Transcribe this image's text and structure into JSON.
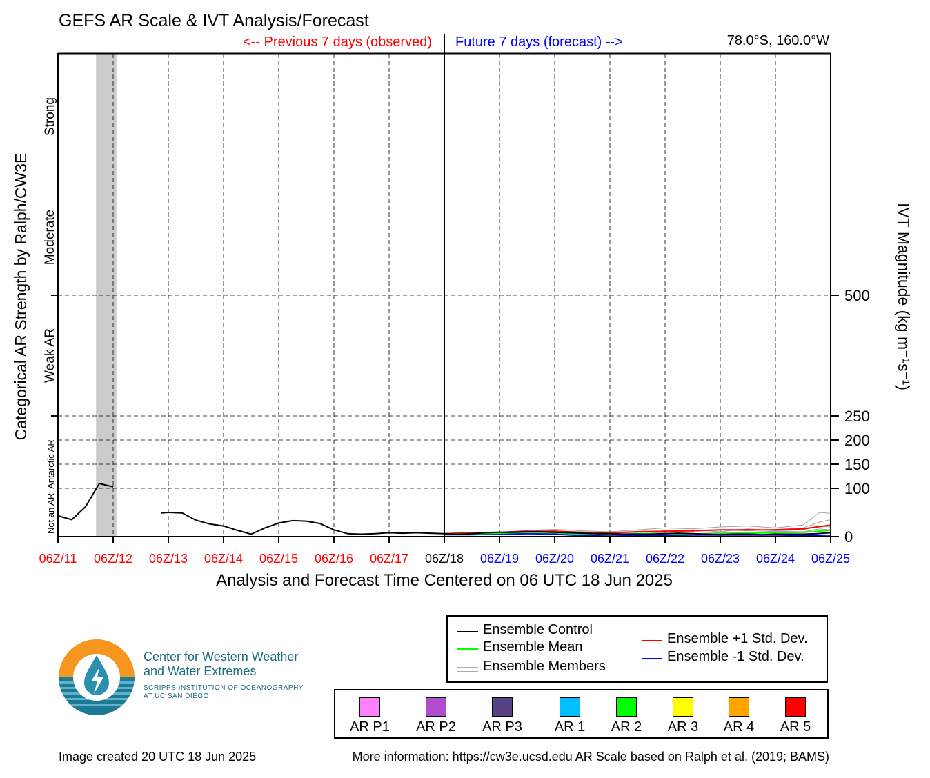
{
  "header": {
    "title": "GEFS AR Scale & IVT Analysis/Forecast",
    "previous_label": "<-- Previous 7 days (observed)",
    "future_label": "Future 7 days (forecast) -->",
    "location": "78.0°S, 160.0°W"
  },
  "colors": {
    "observed": "#ff0000",
    "forecast": "#0000ff",
    "control": "#000000",
    "mean": "#00ff00",
    "plus_std": "#ff0000",
    "minus_std": "#0000ff",
    "members": "#a0a0a0",
    "ar_shade": "#cccccc"
  },
  "chart_data": {
    "type": "line",
    "xlabel": "Analysis and Forecast Time Centered on 06 UTC 18 Jun 2025",
    "ylabel_left": "Categorical AR Strength by Ralph/CW3E",
    "ylabel_right": "IVT Magnitude (kg m⁻¹s⁻¹)",
    "x_ticks": [
      "06Z/11",
      "06Z/12",
      "06Z/13",
      "06Z/14",
      "06Z/15",
      "06Z/16",
      "06Z/17",
      "06Z/18",
      "06Z/19",
      "06Z/20",
      "06Z/21",
      "06Z/22",
      "06Z/23",
      "06Z/24",
      "06Z/25"
    ],
    "center_tick": "06Z/18",
    "x_range_days": [
      0,
      14
    ],
    "y_ticks": [
      0,
      100,
      150,
      200,
      250,
      500
    ],
    "y_range": [
      0,
      1000
    ],
    "left_categories": [
      "Not an AR",
      "Antarctic AR",
      "Weak AR",
      "Moderate",
      "Strong"
    ],
    "grid": true,
    "ar_shaded_period": [
      0.69,
      1.06
    ],
    "series": [
      {
        "name": "Ensemble Control",
        "key": "control",
        "segments": [
          {
            "x": [
              0.0,
              0.25,
              0.5,
              0.75,
              1.0
            ],
            "y": [
              43,
              35,
              62,
              110,
              103
            ]
          },
          {
            "x": [
              1.87,
              2.0,
              2.25,
              2.5,
              2.75,
              3.0,
              3.25,
              3.5,
              3.75,
              4.0,
              4.25,
              4.5,
              4.75,
              5.0,
              5.25,
              5.5,
              5.75,
              6.0,
              6.25,
              6.5,
              6.75,
              7.0,
              7.25,
              7.5,
              7.75,
              8.0,
              8.25,
              8.5,
              8.75,
              9.0,
              9.25,
              9.5,
              9.75,
              10.0,
              10.25,
              10.5,
              10.75,
              11.0,
              11.25,
              11.5,
              11.75,
              12.0,
              12.25,
              12.5,
              12.75,
              13.0,
              13.25,
              13.5,
              13.75,
              14.0
            ],
            "y": [
              49,
              50,
              49,
              34,
              26,
              22,
              13,
              5,
              18,
              28,
              33,
              32,
              27,
              14,
              6,
              5,
              6,
              8,
              7,
              8,
              7,
              6,
              5,
              6,
              8,
              9,
              9,
              10,
              10,
              9,
              8,
              7,
              6,
              6,
              5,
              5,
              5,
              6,
              7,
              6,
              5,
              4,
              5,
              5,
              4,
              5,
              5,
              5,
              6,
              8
            ]
          }
        ]
      },
      {
        "name": "Ensemble Mean",
        "key": "mean",
        "segments": [
          {
            "x": [
              7.0,
              7.5,
              8.0,
              8.5,
              9.0,
              9.5,
              10.0,
              10.5,
              11.0,
              11.5,
              12.0,
              12.5,
              13.0,
              13.5,
              14.0
            ],
            "y": [
              5,
              6,
              7,
              9,
              8,
              5,
              4,
              6,
              6,
              5,
              6,
              7,
              8,
              9,
              13
            ]
          }
        ]
      },
      {
        "name": "Ensemble +1 Std. Dev.",
        "key": "plus_std",
        "segments": [
          {
            "x": [
              7.0,
              7.5,
              8.0,
              8.5,
              9.0,
              9.5,
              10.0,
              10.5,
              11.0,
              11.5,
              12.0,
              12.5,
              13.0,
              13.5,
              14.0
            ],
            "y": [
              6,
              8,
              9,
              11,
              11,
              9,
              8,
              10,
              11,
              12,
              14,
              14,
              14,
              16,
              24
            ]
          }
        ]
      },
      {
        "name": "Ensemble -1 Std. Dev.",
        "key": "minus_std",
        "segments": [
          {
            "x": [
              7.0,
              7.5,
              8.0,
              8.5,
              9.0,
              9.5,
              10.0,
              10.5,
              11.0,
              11.5,
              12.0,
              12.5,
              13.0,
              13.5,
              14.0
            ],
            "y": [
              4,
              4,
              5,
              6,
              5,
              2,
              1,
              2,
              2,
              1,
              1,
              1,
              1,
              2,
              1
            ]
          }
        ]
      }
    ],
    "members": [
      {
        "x": [
          7.0,
          7.5,
          8.0,
          8.5,
          9.0,
          9.5,
          10.0,
          10.5,
          11.0,
          11.5,
          12.0,
          12.5,
          13.0,
          13.5,
          13.8,
          14.0
        ],
        "y": [
          6,
          8,
          9,
          13,
          15,
          12,
          10,
          14,
          18,
          16,
          20,
          22,
          18,
          24,
          50,
          48
        ]
      },
      {
        "x": [
          7.0,
          7.5,
          8.0,
          8.5,
          9.0,
          9.5,
          10.0,
          10.5,
          11.0,
          11.5,
          12.0,
          12.5,
          13.0,
          13.5,
          13.8,
          14.0
        ],
        "y": [
          5,
          7,
          8,
          9,
          12,
          8,
          6,
          9,
          12,
          11,
          14,
          12,
          15,
          18,
          30,
          35
        ]
      },
      {
        "x": [
          7.0,
          7.5,
          8.0,
          8.5,
          9.0,
          9.5,
          10.0,
          10.5,
          11.0,
          11.5,
          12.0,
          12.5,
          13.0,
          13.5,
          13.8,
          14.0
        ],
        "y": [
          4,
          5,
          7,
          8,
          7,
          4,
          3,
          6,
          9,
          14,
          10,
          16,
          12,
          14,
          22,
          20
        ]
      },
      {
        "x": [
          7.0,
          7.5,
          8.0,
          8.5,
          9.0,
          9.5,
          10.0,
          10.5,
          11.0,
          11.5,
          12.0,
          12.5,
          13.0,
          13.5,
          13.8,
          14.0
        ],
        "y": [
          5,
          6,
          6,
          10,
          9,
          6,
          5,
          7,
          7,
          6,
          8,
          9,
          11,
          10,
          16,
          14
        ]
      }
    ]
  },
  "legend": {
    "control": "Ensemble Control",
    "mean": "Ensemble Mean",
    "members": "Ensemble Members",
    "plus_std": "Ensemble +1 Std. Dev.",
    "minus_std": "Ensemble -1 Std. Dev."
  },
  "categories": [
    {
      "label": "AR P1",
      "color": "#ff80ff"
    },
    {
      "label": "AR P2",
      "color": "#b04dcc"
    },
    {
      "label": "AR P3",
      "color": "#574285"
    },
    {
      "label": "AR 1",
      "color": "#00bfff"
    },
    {
      "label": "AR 2",
      "color": "#00ff00"
    },
    {
      "label": "AR 3",
      "color": "#ffff00"
    },
    {
      "label": "AR 4",
      "color": "#ffa500"
    },
    {
      "label": "AR 5",
      "color": "#ff0000"
    }
  ],
  "org": {
    "name_line1": "Center for Western Weather",
    "name_line2": "and Water Extremes",
    "sub_line1": "SCRIPPS INSTITUTION OF OCEANOGRAPHY",
    "sub_line2": "AT UC SAN DIEGO"
  },
  "footer": {
    "created": "Image created 20 UTC 18 Jun 2025",
    "more_info": "More information: https://cw3e.ucsd.edu AR Scale based on Ralph et al. (2019; BAMS)"
  }
}
